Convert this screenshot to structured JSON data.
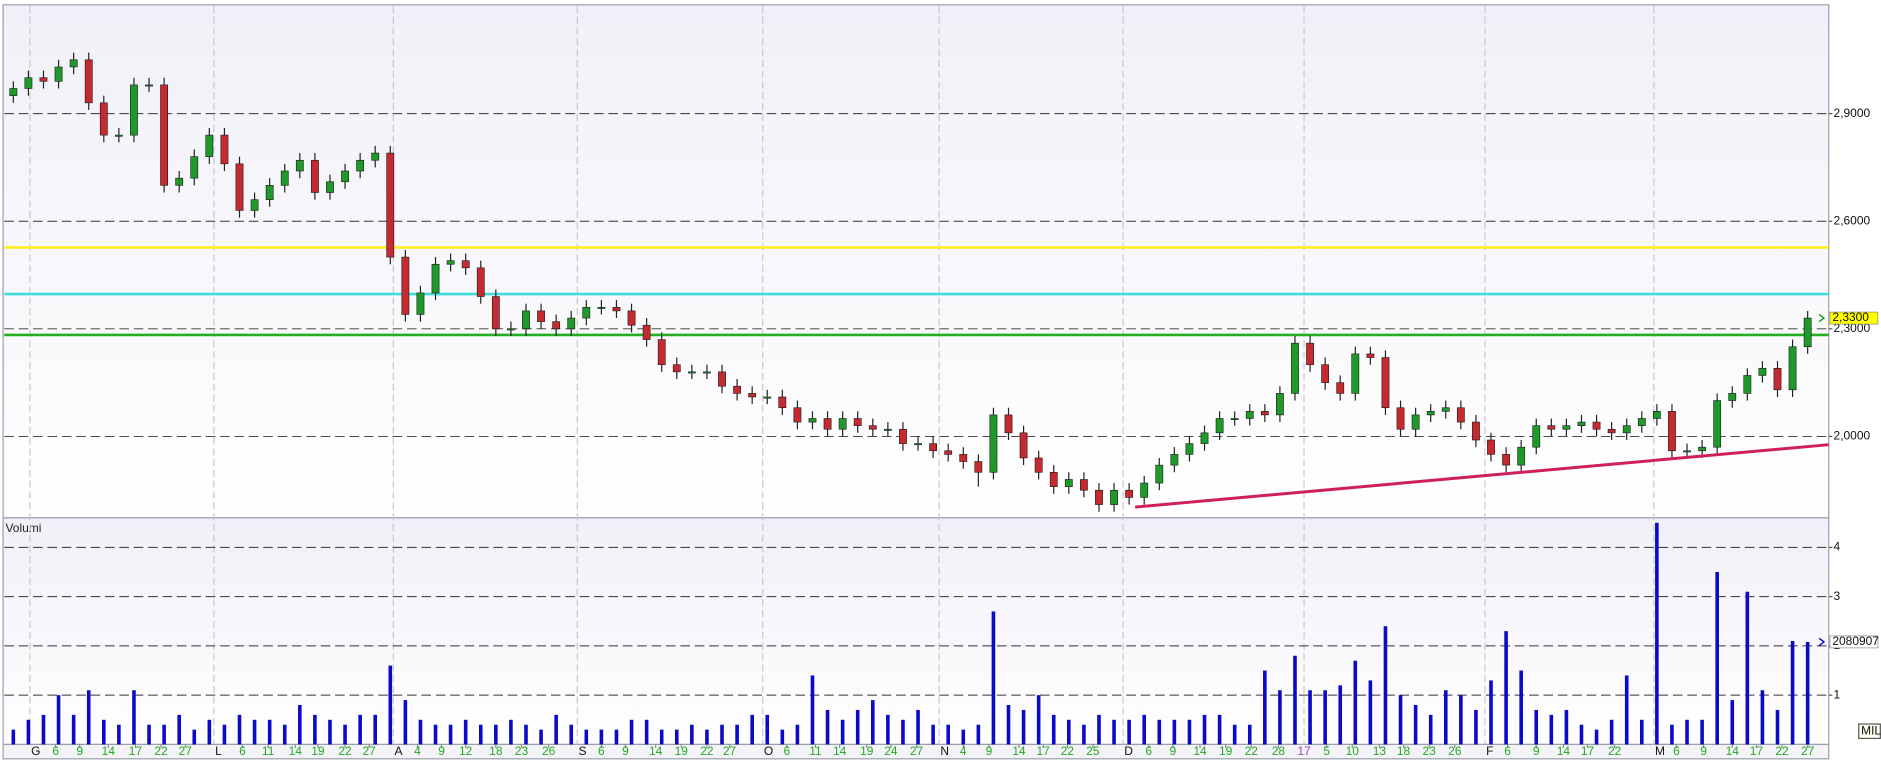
{
  "chart_data": {
    "type": "candlestick",
    "xlim": [
      -0.6,
      120.4
    ],
    "grid": true,
    "xticks": [
      {
        "value": 2.8,
        "label": "6"
      },
      {
        "value": 4.4,
        "label": "9"
      },
      {
        "value": 6.3,
        "label": "14"
      },
      {
        "value": 8.1,
        "label": "17"
      },
      {
        "value": 9.8,
        "label": "22"
      },
      {
        "value": 11.4,
        "label": "27"
      },
      {
        "value": 15.2,
        "label": "6"
      },
      {
        "value": 16.9,
        "label": "11"
      },
      {
        "value": 18.7,
        "label": "14"
      },
      {
        "value": 20.2,
        "label": "19"
      },
      {
        "value": 22.0,
        "label": "22"
      },
      {
        "value": 23.6,
        "label": "27"
      },
      {
        "value": 26.8,
        "label": "4"
      },
      {
        "value": 28.4,
        "label": "9"
      },
      {
        "value": 30.0,
        "label": "12"
      },
      {
        "value": 32.0,
        "label": "18"
      },
      {
        "value": 33.7,
        "label": "23"
      },
      {
        "value": 35.5,
        "label": "26"
      },
      {
        "value": 39.0,
        "label": "6"
      },
      {
        "value": 40.6,
        "label": "9"
      },
      {
        "value": 42.6,
        "label": "14"
      },
      {
        "value": 44.3,
        "label": "19"
      },
      {
        "value": 46.0,
        "label": "22"
      },
      {
        "value": 47.5,
        "label": "27"
      },
      {
        "value": 51.3,
        "label": "6"
      },
      {
        "value": 53.2,
        "label": "11"
      },
      {
        "value": 54.8,
        "label": "14"
      },
      {
        "value": 56.6,
        "label": "19"
      },
      {
        "value": 58.2,
        "label": "24"
      },
      {
        "value": 59.9,
        "label": "27"
      },
      {
        "value": 63.0,
        "label": "4"
      },
      {
        "value": 64.7,
        "label": "9"
      },
      {
        "value": 66.7,
        "label": "14"
      },
      {
        "value": 68.3,
        "label": "17"
      },
      {
        "value": 69.9,
        "label": "22"
      },
      {
        "value": 71.6,
        "label": "25"
      },
      {
        "value": 75.3,
        "label": "6"
      },
      {
        "value": 76.9,
        "label": "9"
      },
      {
        "value": 78.7,
        "label": "14"
      },
      {
        "value": 80.4,
        "label": "19"
      },
      {
        "value": 82.1,
        "label": "22"
      },
      {
        "value": 83.9,
        "label": "28"
      },
      {
        "value": 87.1,
        "label": "5"
      },
      {
        "value": 88.8,
        "label": "10"
      },
      {
        "value": 90.6,
        "label": "13"
      },
      {
        "value": 92.2,
        "label": "18"
      },
      {
        "value": 93.9,
        "label": "23"
      },
      {
        "value": 95.6,
        "label": "26"
      },
      {
        "value": 99.1,
        "label": "6"
      },
      {
        "value": 101.0,
        "label": "9"
      },
      {
        "value": 102.8,
        "label": "14"
      },
      {
        "value": 104.4,
        "label": "17"
      },
      {
        "value": 106.2,
        "label": "22"
      },
      {
        "value": 110.3,
        "label": "6"
      },
      {
        "value": 112.1,
        "label": "9"
      },
      {
        "value": 114.0,
        "label": "14"
      },
      {
        "value": 115.6,
        "label": "17"
      },
      {
        "value": 117.3,
        "label": "22"
      },
      {
        "value": 119.0,
        "label": "27"
      }
    ],
    "xtick_color": "#22aa22",
    "month_ticks": [
      {
        "value": 1.1,
        "label": "G"
      },
      {
        "value": 13.3,
        "label": "L"
      },
      {
        "value": 25.2,
        "label": "A"
      },
      {
        "value": 37.4,
        "label": "S"
      },
      {
        "value": 49.7,
        "label": "O"
      },
      {
        "value": 61.4,
        "label": "N"
      },
      {
        "value": 73.6,
        "label": "D"
      },
      {
        "value": 97.6,
        "label": "F"
      },
      {
        "value": 108.8,
        "label": "M"
      }
    ],
    "year_ticks": [
      {
        "value": 85.6,
        "label": "17"
      }
    ],
    "year_color": "#a040c0",
    "price": {
      "ylim": [
        1.773,
        3.2
      ],
      "yticks": [
        {
          "value": 2.0,
          "label": "2,0000"
        },
        {
          "value": 2.3,
          "label": "2,3000"
        },
        {
          "value": 2.6,
          "label": "2,6000"
        },
        {
          "value": 2.9,
          "label": "2,9000"
        }
      ],
      "up_color": "#1f9a2a",
      "down_color": "#c42a30",
      "open": [
        2.95,
        2.97,
        3.0,
        2.99,
        3.03,
        3.05,
        2.93,
        2.84,
        2.84,
        2.98,
        2.98,
        2.7,
        2.72,
        2.78,
        2.84,
        2.76,
        2.63,
        2.66,
        2.7,
        2.74,
        2.77,
        2.68,
        2.71,
        2.74,
        2.77,
        2.79,
        2.5,
        2.34,
        2.4,
        2.48,
        2.49,
        2.47,
        2.39,
        2.3,
        2.3,
        2.35,
        2.32,
        2.3,
        2.33,
        2.36,
        2.36,
        2.35,
        2.31,
        2.27,
        2.2,
        2.18,
        2.18,
        2.18,
        2.14,
        2.12,
        2.11,
        2.11,
        2.08,
        2.04,
        2.05,
        2.02,
        2.05,
        2.03,
        2.02,
        2.02,
        1.98,
        1.98,
        1.96,
        1.95,
        1.93,
        1.9,
        2.06,
        2.01,
        1.94,
        1.9,
        1.86,
        1.88,
        1.85,
        1.81,
        1.85,
        1.83,
        1.87,
        1.92,
        1.95,
        1.98,
        2.01,
        2.05,
        2.05,
        2.07,
        2.06,
        2.12,
        2.26,
        2.2,
        2.15,
        2.12,
        2.23,
        2.22,
        2.08,
        2.02,
        2.06,
        2.07,
        2.08,
        2.04,
        1.99,
        1.95,
        1.92,
        1.97,
        2.03,
        2.02,
        2.03,
        2.04,
        2.02,
        2.01,
        2.03,
        2.05,
        2.07,
        1.96,
        1.96,
        1.97,
        2.1,
        2.12,
        2.17,
        2.19,
        2.13,
        2.25
      ],
      "high": [
        2.99,
        3.02,
        3.02,
        3.05,
        3.07,
        3.07,
        2.95,
        2.86,
        3.0,
        3.0,
        3.0,
        2.74,
        2.8,
        2.86,
        2.86,
        2.78,
        2.68,
        2.72,
        2.76,
        2.79,
        2.79,
        2.73,
        2.76,
        2.79,
        2.81,
        2.81,
        2.52,
        2.42,
        2.5,
        2.51,
        2.51,
        2.49,
        2.41,
        2.32,
        2.37,
        2.37,
        2.34,
        2.35,
        2.38,
        2.38,
        2.38,
        2.37,
        2.33,
        2.29,
        2.22,
        2.2,
        2.2,
        2.2,
        2.16,
        2.14,
        2.13,
        2.13,
        2.1,
        2.07,
        2.07,
        2.07,
        2.07,
        2.05,
        2.04,
        2.04,
        2.0,
        2.0,
        1.98,
        1.97,
        1.95,
        2.08,
        2.08,
        2.03,
        1.96,
        1.92,
        1.9,
        1.9,
        1.87,
        1.87,
        1.87,
        1.89,
        1.94,
        1.97,
        2.0,
        2.03,
        2.07,
        2.07,
        2.09,
        2.09,
        2.14,
        2.28,
        2.28,
        2.22,
        2.17,
        2.25,
        2.25,
        2.24,
        2.1,
        2.08,
        2.09,
        2.1,
        2.1,
        2.06,
        2.01,
        1.97,
        1.99,
        2.05,
        2.05,
        2.05,
        2.06,
        2.06,
        2.04,
        2.05,
        2.07,
        2.09,
        2.09,
        1.98,
        1.99,
        2.12,
        2.14,
        2.19,
        2.21,
        2.21,
        2.27,
        2.35
      ],
      "low": [
        2.93,
        2.95,
        2.97,
        2.97,
        3.01,
        2.91,
        2.82,
        2.82,
        2.82,
        2.96,
        2.68,
        2.68,
        2.7,
        2.76,
        2.74,
        2.61,
        2.61,
        2.64,
        2.68,
        2.72,
        2.66,
        2.66,
        2.69,
        2.72,
        2.75,
        2.48,
        2.32,
        2.32,
        2.38,
        2.46,
        2.45,
        2.37,
        2.28,
        2.28,
        2.28,
        2.3,
        2.28,
        2.28,
        2.31,
        2.34,
        2.33,
        2.29,
        2.25,
        2.18,
        2.16,
        2.16,
        2.16,
        2.12,
        2.1,
        2.09,
        2.09,
        2.06,
        2.02,
        2.02,
        2.0,
        2.0,
        2.01,
        2.0,
        2.0,
        1.96,
        1.96,
        1.94,
        1.93,
        1.91,
        1.86,
        1.88,
        1.99,
        1.92,
        1.88,
        1.84,
        1.84,
        1.83,
        1.79,
        1.79,
        1.81,
        1.81,
        1.85,
        1.9,
        1.93,
        1.96,
        1.99,
        2.03,
        2.03,
        2.04,
        2.04,
        2.1,
        2.18,
        2.13,
        2.1,
        2.1,
        2.2,
        2.06,
        2.0,
        2.0,
        2.04,
        2.05,
        2.02,
        1.97,
        1.93,
        1.9,
        1.9,
        1.95,
        2.0,
        2.0,
        2.01,
        2.0,
        1.99,
        1.99,
        2.01,
        2.03,
        1.94,
        1.94,
        1.94,
        1.95,
        2.08,
        2.1,
        2.15,
        2.11,
        2.11,
        2.23
      ],
      "close": [
        2.97,
        3.0,
        2.99,
        3.03,
        3.05,
        2.93,
        2.84,
        2.84,
        2.98,
        2.98,
        2.7,
        2.72,
        2.78,
        2.84,
        2.76,
        2.63,
        2.66,
        2.7,
        2.74,
        2.77,
        2.68,
        2.71,
        2.74,
        2.77,
        2.79,
        2.5,
        2.34,
        2.4,
        2.48,
        2.49,
        2.47,
        2.39,
        2.3,
        2.3,
        2.35,
        2.32,
        2.3,
        2.33,
        2.36,
        2.36,
        2.35,
        2.31,
        2.27,
        2.2,
        2.18,
        2.18,
        2.18,
        2.14,
        2.12,
        2.11,
        2.11,
        2.08,
        2.04,
        2.05,
        2.02,
        2.05,
        2.03,
        2.02,
        2.02,
        1.98,
        1.98,
        1.96,
        1.95,
        1.93,
        1.9,
        2.06,
        2.01,
        1.94,
        1.9,
        1.86,
        1.88,
        1.85,
        1.81,
        1.85,
        1.83,
        1.87,
        1.92,
        1.95,
        1.98,
        2.01,
        2.05,
        2.05,
        2.07,
        2.06,
        2.12,
        2.26,
        2.2,
        2.15,
        2.12,
        2.23,
        2.22,
        2.08,
        2.02,
        2.06,
        2.07,
        2.08,
        2.04,
        1.99,
        1.95,
        1.92,
        1.97,
        2.03,
        2.02,
        2.03,
        2.04,
        2.02,
        2.01,
        2.03,
        2.05,
        2.07,
        1.96,
        1.96,
        1.97,
        2.1,
        2.12,
        2.17,
        2.19,
        2.13,
        2.25,
        2.33
      ],
      "last": {
        "value": 2.33,
        "label": "2,3300"
      },
      "last_color": "#ffff00",
      "hlines": [
        {
          "value": 2.527,
          "color": "#ffee22"
        },
        {
          "value": 2.397,
          "color": "#3fdcdc"
        },
        {
          "value": 2.283,
          "color": "#22b022"
        }
      ],
      "trendline": {
        "x": [
          74.4,
          120.4
        ],
        "y": [
          1.803,
          1.977
        ],
        "color": "#d0205a"
      }
    },
    "volume": {
      "title": "Volumi",
      "unit": "MIL",
      "color": "#0a0ac8",
      "ylim": [
        0,
        4.6
      ],
      "yticks": [
        1,
        2,
        3,
        4
      ],
      "values": [
        0.3,
        0.5,
        0.6,
        1.0,
        0.6,
        1.1,
        0.5,
        0.4,
        1.1,
        0.4,
        0.4,
        0.6,
        0.3,
        0.5,
        0.4,
        0.6,
        0.5,
        0.5,
        0.4,
        0.8,
        0.6,
        0.5,
        0.4,
        0.6,
        0.6,
        1.6,
        0.9,
        0.5,
        0.4,
        0.4,
        0.5,
        0.4,
        0.4,
        0.5,
        0.4,
        0.3,
        0.6,
        0.4,
        0.3,
        0.3,
        0.3,
        0.5,
        0.5,
        0.3,
        0.3,
        0.4,
        0.3,
        0.4,
        0.4,
        0.6,
        0.6,
        0.3,
        0.4,
        1.4,
        0.7,
        0.5,
        0.7,
        0.9,
        0.6,
        0.5,
        0.7,
        0.4,
        0.4,
        0.3,
        0.4,
        2.7,
        0.8,
        0.7,
        1.0,
        0.6,
        0.5,
        0.4,
        0.6,
        0.5,
        0.5,
        0.6,
        0.5,
        0.5,
        0.5,
        0.6,
        0.6,
        0.4,
        0.4,
        1.5,
        1.1,
        1.8,
        1.1,
        1.1,
        1.2,
        1.7,
        1.3,
        2.4,
        1.0,
        0.8,
        0.6,
        1.1,
        1.0,
        0.7,
        1.3,
        2.3,
        1.5,
        0.7,
        0.6,
        0.7,
        0.4,
        0.3,
        0.5,
        1.4,
        0.5,
        4.5,
        0.4,
        0.5,
        0.5,
        3.5,
        0.9,
        3.1,
        1.1,
        0.7,
        2.1,
        2.08
      ],
      "last": {
        "value": 2.080907,
        "label": "2080907"
      }
    }
  }
}
